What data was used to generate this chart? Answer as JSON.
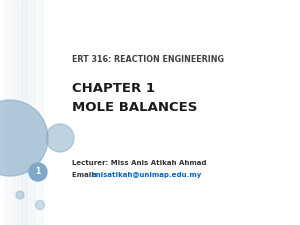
{
  "bg_color": "#ffffff",
  "title_line1": "ERT 316: REACTION ENGINEERING",
  "chapter_line1": "CHAPTER 1",
  "chapter_line2": "MOLE BALANCES",
  "lecturer_text": "Lecturer: Miss Anis Atikah Ahmad",
  "email_label": "Email: ",
  "email_text": "anisatikah@unimap.edu.my",
  "slide_number": "1",
  "circle_color": "#8aaec8",
  "line_color": "#d0dce8",
  "title_color": "#404040",
  "chapter_color": "#1a1a1a",
  "info_color": "#333333",
  "email_color": "#0563C1",
  "slide_num_color": "#ffffff",
  "slide_num_bg": "#7fa8c9"
}
